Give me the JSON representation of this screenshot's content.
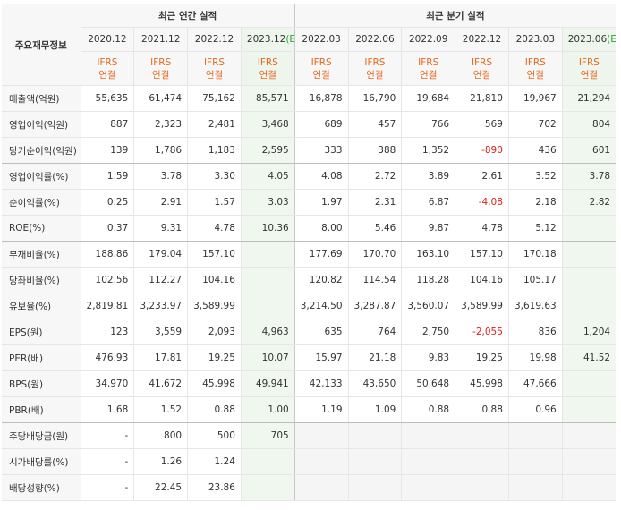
{
  "table": {
    "corner": "주요재무정보",
    "sections": [
      "최근 연간 실적",
      "최근 분기 실적"
    ],
    "columns": [
      {
        "period": "2020.12"
      },
      {
        "period": "2021.12"
      },
      {
        "period": "2022.12"
      },
      {
        "period": "2023.12",
        "mark": "(E)"
      },
      {
        "period": "2022.03"
      },
      {
        "period": "2022.06"
      },
      {
        "period": "2022.09"
      },
      {
        "period": "2022.12"
      },
      {
        "period": "2023.03"
      },
      {
        "period": "2023.06",
        "mark": "(E)"
      }
    ],
    "standard": [
      "IFRS",
      "연결"
    ],
    "rows": [
      {
        "label": "매출액(억원)",
        "values": [
          "55,635",
          "61,474",
          "75,162",
          "85,571",
          "16,878",
          "16,790",
          "19,684",
          "21,810",
          "19,967",
          "21,294"
        ]
      },
      {
        "label": "영업이익(억원)",
        "values": [
          "887",
          "2,323",
          "2,481",
          "3,468",
          "689",
          "457",
          "766",
          "569",
          "702",
          "804"
        ]
      },
      {
        "label": "당기순이익(억원)",
        "values": [
          "139",
          "1,786",
          "1,183",
          "2,595",
          "333",
          "388",
          "1,352",
          "-890",
          "436",
          "601"
        ]
      },
      {
        "label": "영업이익률(%)",
        "values": [
          "1.59",
          "3.78",
          "3.30",
          "4.05",
          "4.08",
          "2.72",
          "3.89",
          "2.61",
          "3.52",
          "3.78"
        ]
      },
      {
        "label": "순이익률(%)",
        "values": [
          "0.25",
          "2.91",
          "1.57",
          "3.03",
          "1.97",
          "2.31",
          "6.87",
          "-4.08",
          "2.18",
          "2.82"
        ]
      },
      {
        "label": "ROE(%)",
        "values": [
          "0.37",
          "9.31",
          "4.78",
          "10.36",
          "8.00",
          "5.46",
          "9.87",
          "4.78",
          "5.12",
          null
        ]
      },
      {
        "label": "부채비율(%)",
        "values": [
          "188.86",
          "179.04",
          "157.10",
          null,
          "177.69",
          "170.70",
          "163.10",
          "157.10",
          "170.18",
          null
        ]
      },
      {
        "label": "당좌비율(%)",
        "values": [
          "102.56",
          "112.27",
          "104.16",
          null,
          "120.82",
          "114.54",
          "118.28",
          "104.16",
          "105.17",
          null
        ]
      },
      {
        "label": "유보율(%)",
        "values": [
          "2,819.81",
          "3,233.97",
          "3,589.99",
          null,
          "3,214.50",
          "3,287.87",
          "3,560.07",
          "3,589.99",
          "3,619.63",
          null
        ]
      },
      {
        "label": "EPS(원)",
        "values": [
          "123",
          "3,559",
          "2,093",
          "4,963",
          "635",
          "764",
          "2,750",
          "-2,055",
          "836",
          "1,204"
        ]
      },
      {
        "label": "PER(배)",
        "values": [
          "476.93",
          "17.81",
          "19.25",
          "10.07",
          "15.97",
          "21.18",
          "9.83",
          "19.25",
          "19.98",
          "41.52"
        ]
      },
      {
        "label": "BPS(원)",
        "values": [
          "34,970",
          "41,672",
          "45,998",
          "49,941",
          "42,133",
          "43,650",
          "50,648",
          "45,998",
          "47,666",
          null
        ]
      },
      {
        "label": "PBR(배)",
        "values": [
          "1.68",
          "1.52",
          "0.88",
          "1.00",
          "1.19",
          "1.09",
          "0.88",
          "0.88",
          "0.96",
          null
        ]
      },
      {
        "label": "주당배당금(원)",
        "values": [
          "-",
          "800",
          "500",
          "705",
          null,
          null,
          null,
          null,
          null,
          null
        ]
      },
      {
        "label": "시가배당률(%)",
        "values": [
          "-",
          "1.26",
          "1.24",
          null,
          null,
          null,
          null,
          null,
          null,
          null
        ]
      },
      {
        "label": "배당성향(%)",
        "values": [
          "-",
          "22.45",
          "23.86",
          null,
          null,
          null,
          null,
          null,
          null,
          null
        ]
      }
    ]
  }
}
